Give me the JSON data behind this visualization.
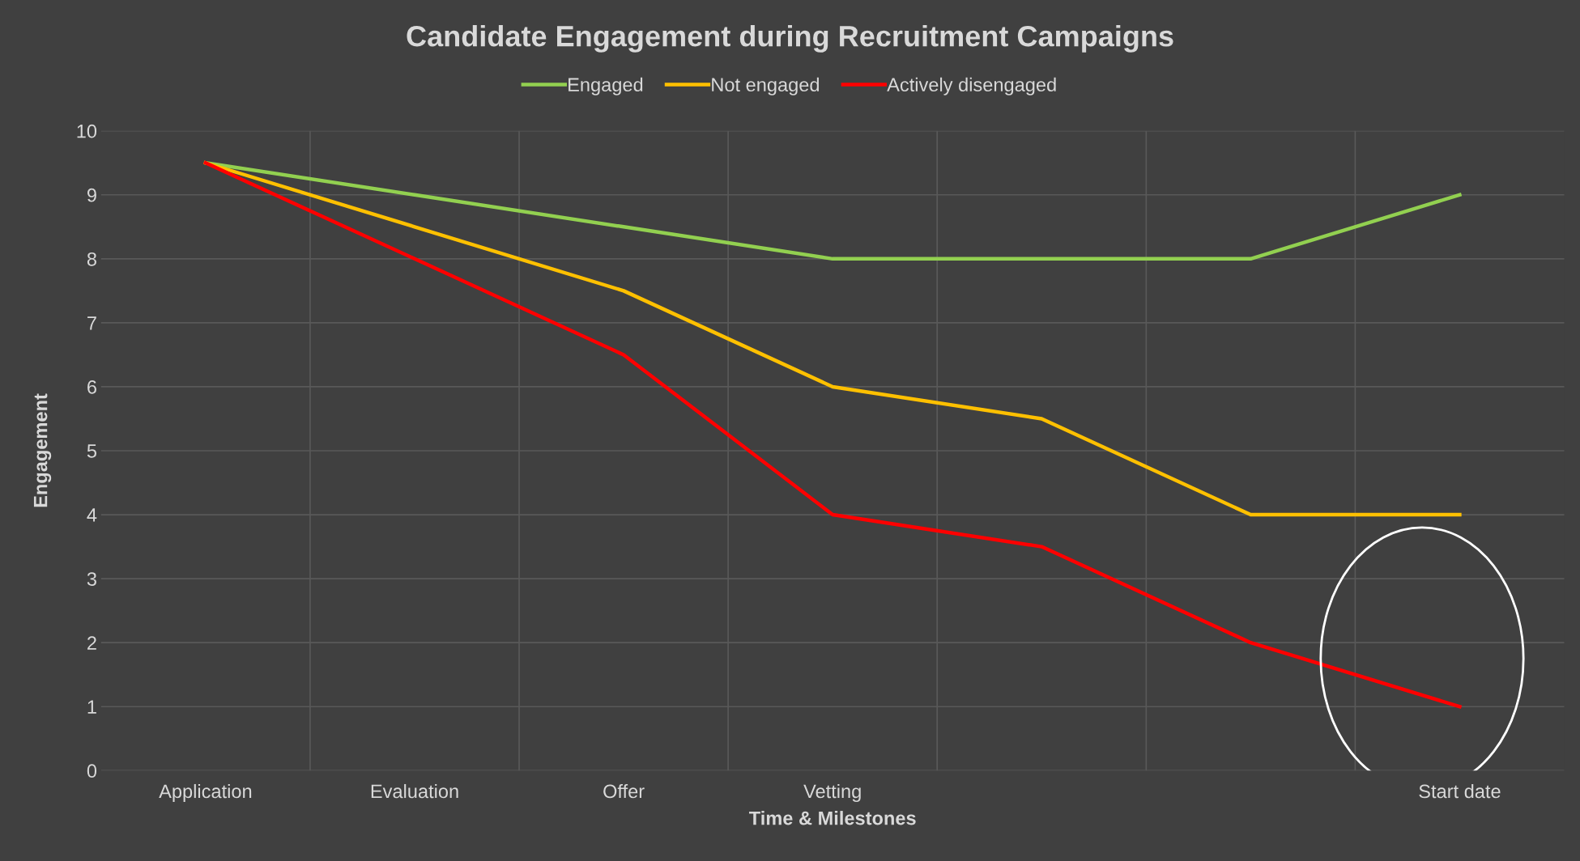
{
  "chart_data": {
    "type": "line",
    "title": "Candidate Engagement during Recruitment Campaigns",
    "xlabel": "Time & Milestones",
    "ylabel": "Engagement",
    "categories": [
      "Application",
      "Evaluation",
      "Offer",
      "Vetting",
      null,
      null,
      "Start date"
    ],
    "series": [
      {
        "name": "Engaged",
        "color": "#92d050",
        "values": [
          9.5,
          9.0,
          8.5,
          8,
          8,
          8,
          9
        ]
      },
      {
        "name": "Not engaged",
        "color": "#ffc000",
        "values": [
          9.5,
          8.5,
          7.5,
          6,
          5.5,
          4,
          4
        ]
      },
      {
        "name": "Actively disengaged",
        "color": "#ff0000",
        "values": [
          9.5,
          8.0,
          6.5,
          4,
          3.5,
          2,
          1
        ]
      }
    ],
    "ylim": [
      0,
      10
    ],
    "yticks": [
      0,
      1,
      2,
      3,
      4,
      5,
      6,
      7,
      8,
      9,
      10
    ],
    "grid": true,
    "legend": "top",
    "marker": "none",
    "line_style": "solid"
  }
}
